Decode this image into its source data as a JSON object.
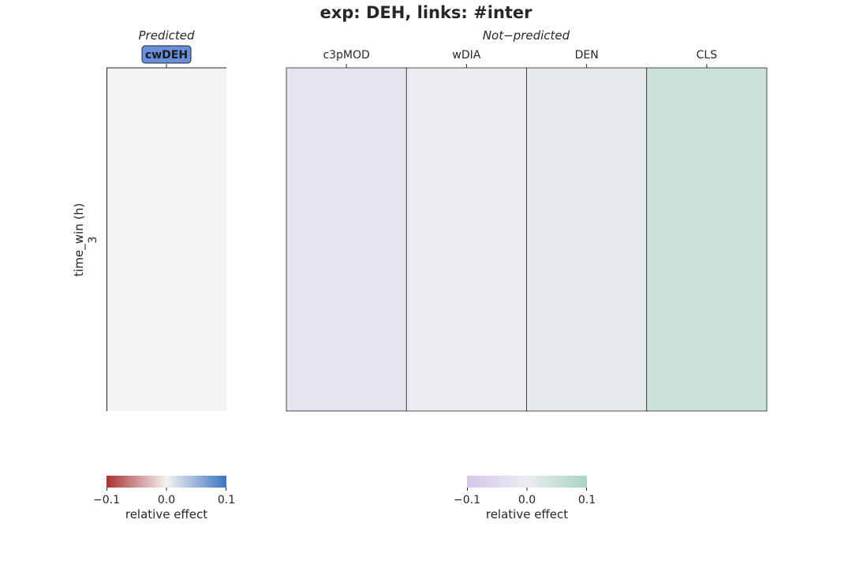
{
  "chart_data": {
    "type": "heatmap",
    "title": "exp: DEH, links: #inter",
    "ylabel": "time_win (h)",
    "rows": [
      "3"
    ],
    "panels": [
      {
        "title": "Predicted",
        "columns": [
          "cwDEH"
        ],
        "highlighted_columns": [
          "cwDEH"
        ],
        "values": [
          [
            0.0
          ]
        ],
        "colormap": {
          "low": "#a83232",
          "mid": "#f5f2f2",
          "high": "#3b74c2"
        },
        "colorbar": {
          "ticks": [
            "−0.1",
            "0.0",
            "0.1"
          ],
          "vmin": -0.1,
          "vmax": 0.1,
          "label": "relative effect"
        }
      },
      {
        "title": "Not−predicted",
        "columns": [
          "c3pMOD",
          "wDIA",
          "DEN",
          "CLS"
        ],
        "highlighted_columns": [],
        "values": [
          [
            -0.02,
            -0.003,
            0.01,
            0.045
          ]
        ],
        "colormap": {
          "low": "#d5c6ea",
          "mid": "#ececf1",
          "high": "#a8d5c1"
        },
        "colorbar": {
          "ticks": [
            "−0.1",
            "0.0",
            "0.1"
          ],
          "vmin": -0.1,
          "vmax": 0.1,
          "label": "relative effect"
        }
      }
    ],
    "highlight_color": "#6a8fdc"
  }
}
